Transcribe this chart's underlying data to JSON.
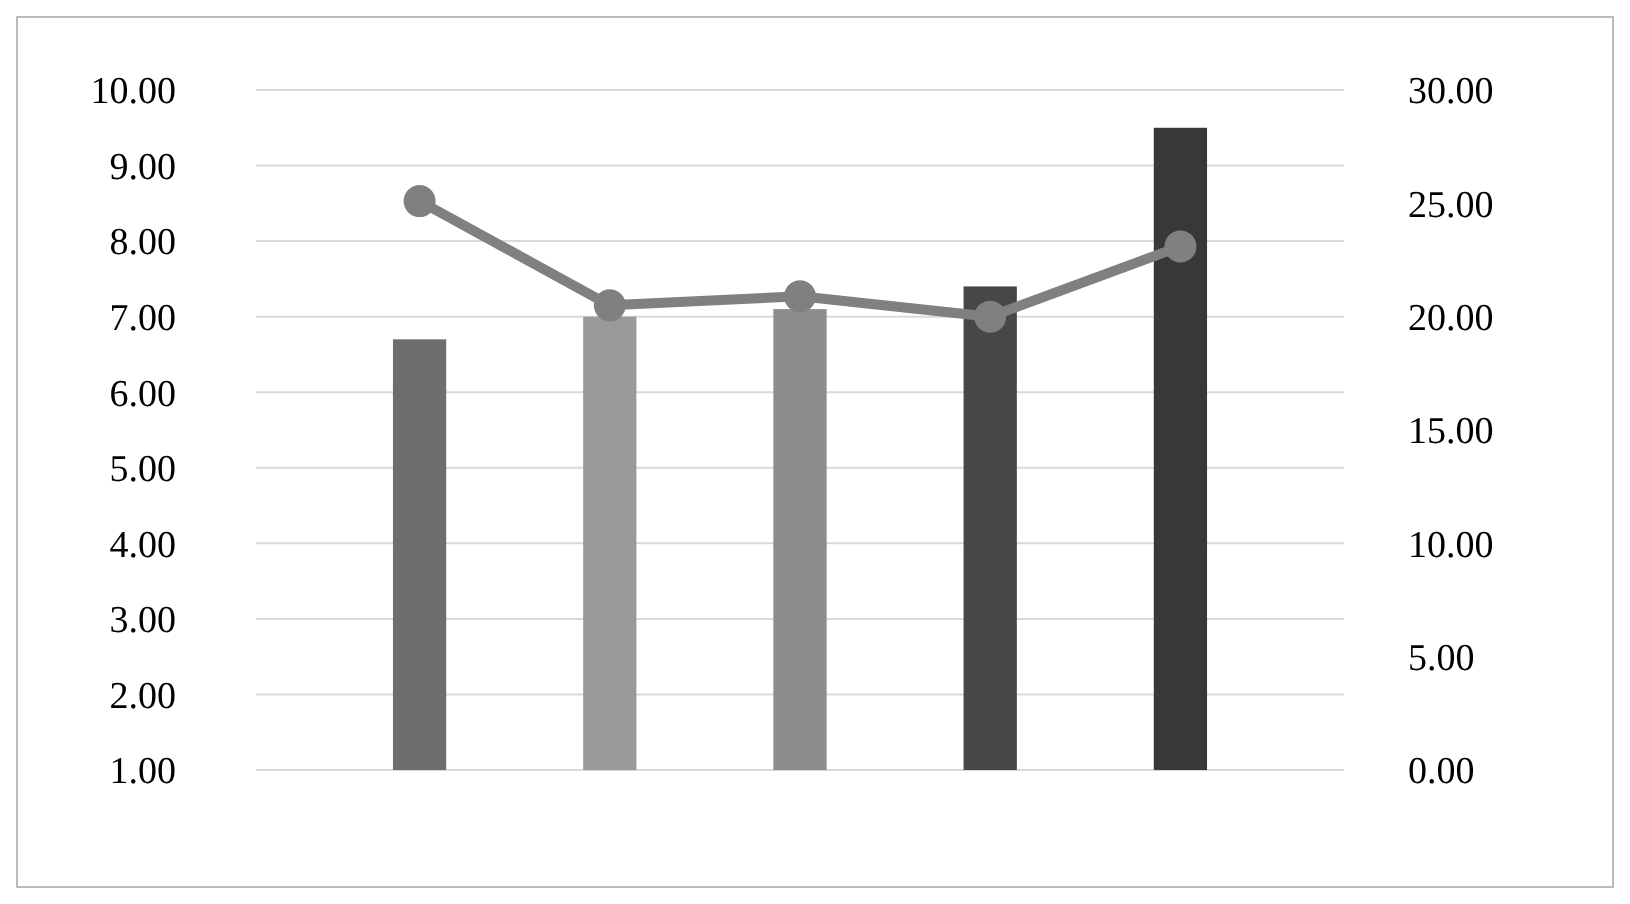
{
  "chart_data": {
    "type": "bar",
    "categories": [
      null,
      null,
      null,
      null,
      null
    ],
    "series": [
      {
        "colors": [
          "#6e6e6e",
          "#9a9a9a",
          "#8c8c8c",
          "#474747",
          "#383838"
        ],
        "values": [
          6.7,
          7.0,
          7.1,
          7.4,
          9.5
        ]
      },
      {
        "type": "line",
        "axis": "y2",
        "color": "#808080",
        "values": [
          25.1,
          20.5,
          20.9,
          20.0,
          23.1
        ]
      }
    ],
    "ylim": [
      1,
      10
    ],
    "yticks": [
      {
        "value": 1,
        "label": "1.00"
      },
      {
        "value": 2,
        "label": "2.00"
      },
      {
        "value": 3,
        "label": "3.00"
      },
      {
        "value": 4,
        "label": "4.00"
      },
      {
        "value": 5,
        "label": "5.00"
      },
      {
        "value": 6,
        "label": "6.00"
      },
      {
        "value": 7,
        "label": "7.00"
      },
      {
        "value": 8,
        "label": "8.00"
      },
      {
        "value": 9,
        "label": "9.00"
      },
      {
        "value": 10,
        "label": "10.00"
      }
    ],
    "y2lim": [
      0,
      30
    ],
    "y2ticks": [
      {
        "value": 0,
        "label": "0.00"
      },
      {
        "value": 5,
        "label": "5.00"
      },
      {
        "value": 10,
        "label": "10.00"
      },
      {
        "value": 15,
        "label": "15.00"
      },
      {
        "value": 20,
        "label": "20.00"
      },
      {
        "value": 25,
        "label": "25.00"
      },
      {
        "value": 30,
        "label": "30.00"
      }
    ],
    "grid": "y",
    "marker": "circle",
    "line_style": "solid"
  }
}
